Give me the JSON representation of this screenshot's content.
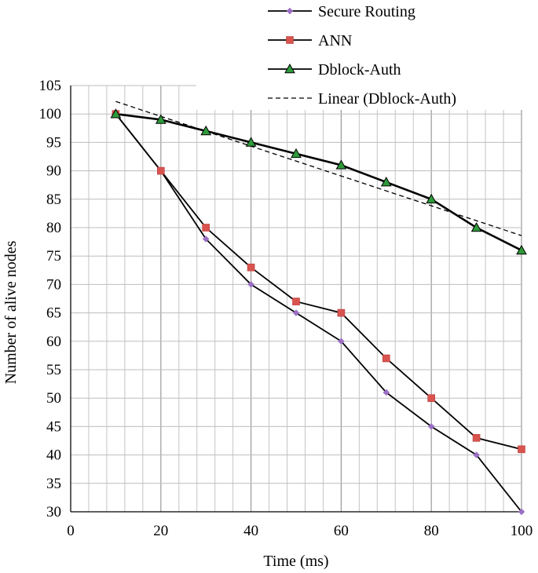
{
  "chart_data": {
    "type": "line",
    "title": "",
    "xlabel": "Time (ms)",
    "ylabel": "Number of alive nodes",
    "xlim": [
      0,
      100
    ],
    "ylim": [
      30,
      105
    ],
    "x_ticks": [
      0,
      20,
      40,
      60,
      80,
      100
    ],
    "y_ticks": [
      30,
      35,
      40,
      45,
      50,
      55,
      60,
      65,
      70,
      75,
      80,
      85,
      90,
      95,
      100,
      105
    ],
    "grid": true,
    "legend_position": "top-right",
    "x": [
      10,
      20,
      30,
      40,
      50,
      60,
      70,
      80,
      90,
      100
    ],
    "series": [
      {
        "name": "Secure Routing",
        "values": [
          100,
          90,
          78,
          70,
          65,
          60,
          51,
          45,
          40,
          30
        ],
        "marker": "diamond",
        "marker_color": "#9b6fc4",
        "line_color": "#000000"
      },
      {
        "name": "ANN",
        "values": [
          100,
          90,
          80,
          73,
          67,
          65,
          57,
          50,
          43,
          41
        ],
        "marker": "square",
        "marker_color": "#d9534f",
        "line_color": "#000000"
      },
      {
        "name": "Dblock-Auth",
        "values": [
          100,
          99,
          97,
          95,
          93,
          91,
          88,
          85,
          80,
          76
        ],
        "marker": "triangle",
        "marker_color": "#2e9a3a",
        "line_color": "#000000"
      }
    ],
    "trendline": {
      "name": "Linear (Dblock-Auth)",
      "of_series": "Dblock-Auth",
      "style": "dashed",
      "x": [
        10,
        100
      ],
      "values": [
        102.2,
        78.6
      ]
    }
  }
}
